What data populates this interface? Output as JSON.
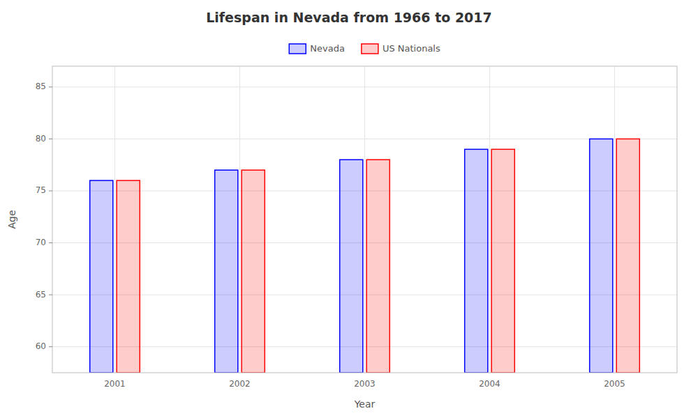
{
  "chart_data": {
    "type": "bar",
    "title": "Lifespan in Nevada from 1966 to 2017",
    "xlabel": "Year",
    "ylabel": "Age",
    "categories": [
      "2001",
      "2002",
      "2003",
      "2004",
      "2005"
    ],
    "series": [
      {
        "name": "Nevada",
        "color": "#0000ff",
        "values": [
          76,
          77,
          78,
          79,
          80
        ]
      },
      {
        "name": "US Nationals",
        "color": "#ff0000",
        "values": [
          76,
          77,
          78,
          79,
          80
        ]
      }
    ],
    "ylim": [
      57.5,
      87
    ],
    "yticks": [
      60,
      65,
      70,
      75,
      80,
      85
    ],
    "grid": true,
    "legend": "top"
  }
}
